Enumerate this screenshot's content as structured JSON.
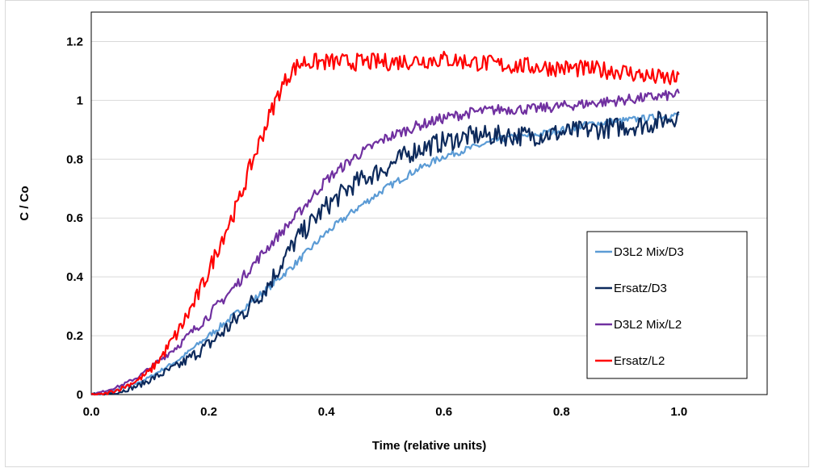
{
  "chart_data": {
    "type": "line",
    "title": "",
    "xlabel": "Time (relative units)",
    "ylabel": "C / Co",
    "xlim": [
      0,
      1.15
    ],
    "ylim": [
      0,
      1.3
    ],
    "xticks": [
      0.0,
      0.2,
      0.4,
      0.6,
      0.8,
      1.0
    ],
    "xtick_labels": [
      "0.0",
      "0.2",
      "0.4",
      "0.6",
      "0.8",
      "1.0"
    ],
    "yticks": [
      0,
      0.2,
      0.4,
      0.6,
      0.8,
      1,
      1.2
    ],
    "ytick_labels": [
      "0",
      "0.2",
      "0.4",
      "0.6",
      "0.8",
      "1",
      "1.2"
    ],
    "grid": "horizontal",
    "legend_position": "lower-right",
    "series": [
      {
        "name": "D3L2 Mix/D3",
        "color": "#5b9bd5",
        "noise": 0.012,
        "x": [
          0.0,
          0.02,
          0.05,
          0.08,
          0.1,
          0.15,
          0.2,
          0.25,
          0.3,
          0.35,
          0.4,
          0.45,
          0.5,
          0.55,
          0.6,
          0.65,
          0.7,
          0.75,
          0.8,
          0.85,
          0.9,
          0.95,
          1.0
        ],
        "y": [
          0.0,
          0.0,
          0.02,
          0.04,
          0.06,
          0.12,
          0.2,
          0.28,
          0.36,
          0.45,
          0.55,
          0.63,
          0.7,
          0.76,
          0.81,
          0.84,
          0.87,
          0.88,
          0.9,
          0.92,
          0.93,
          0.94,
          0.95
        ]
      },
      {
        "name": "Ersatz/D3",
        "color": "#0d2a5c",
        "noise": 0.035,
        "x": [
          0.0,
          0.02,
          0.05,
          0.08,
          0.1,
          0.15,
          0.2,
          0.25,
          0.3,
          0.35,
          0.4,
          0.45,
          0.5,
          0.55,
          0.6,
          0.65,
          0.7,
          0.75,
          0.8,
          0.85,
          0.9,
          0.95,
          1.0
        ],
        "y": [
          0.0,
          0.0,
          0.01,
          0.03,
          0.05,
          0.1,
          0.17,
          0.26,
          0.37,
          0.53,
          0.64,
          0.72,
          0.77,
          0.83,
          0.86,
          0.88,
          0.88,
          0.88,
          0.89,
          0.9,
          0.91,
          0.92,
          0.95
        ]
      },
      {
        "name": "D3L2 Mix/L2",
        "color": "#7030a0",
        "noise": 0.018,
        "x": [
          0.0,
          0.02,
          0.05,
          0.08,
          0.1,
          0.15,
          0.2,
          0.25,
          0.3,
          0.35,
          0.4,
          0.45,
          0.5,
          0.55,
          0.6,
          0.65,
          0.7,
          0.75,
          0.8,
          0.85,
          0.9,
          0.95,
          1.0
        ],
        "y": [
          0.0,
          0.01,
          0.03,
          0.06,
          0.09,
          0.17,
          0.27,
          0.38,
          0.5,
          0.61,
          0.73,
          0.81,
          0.87,
          0.91,
          0.94,
          0.96,
          0.97,
          0.97,
          0.98,
          0.99,
          1.0,
          1.01,
          1.02
        ]
      },
      {
        "name": "Ersatz/L2",
        "color": "#ff0000",
        "noise": 0.03,
        "x": [
          0.0,
          0.02,
          0.05,
          0.08,
          0.1,
          0.12,
          0.15,
          0.18,
          0.2,
          0.22,
          0.25,
          0.27,
          0.3,
          0.32,
          0.34,
          0.36,
          0.4,
          0.5,
          0.6,
          0.7,
          0.8,
          0.9,
          0.95,
          1.0
        ],
        "y": [
          0.0,
          0.0,
          0.02,
          0.05,
          0.08,
          0.13,
          0.22,
          0.33,
          0.42,
          0.52,
          0.65,
          0.77,
          0.93,
          1.03,
          1.1,
          1.13,
          1.13,
          1.13,
          1.14,
          1.12,
          1.11,
          1.1,
          1.08,
          1.07
        ]
      }
    ]
  }
}
